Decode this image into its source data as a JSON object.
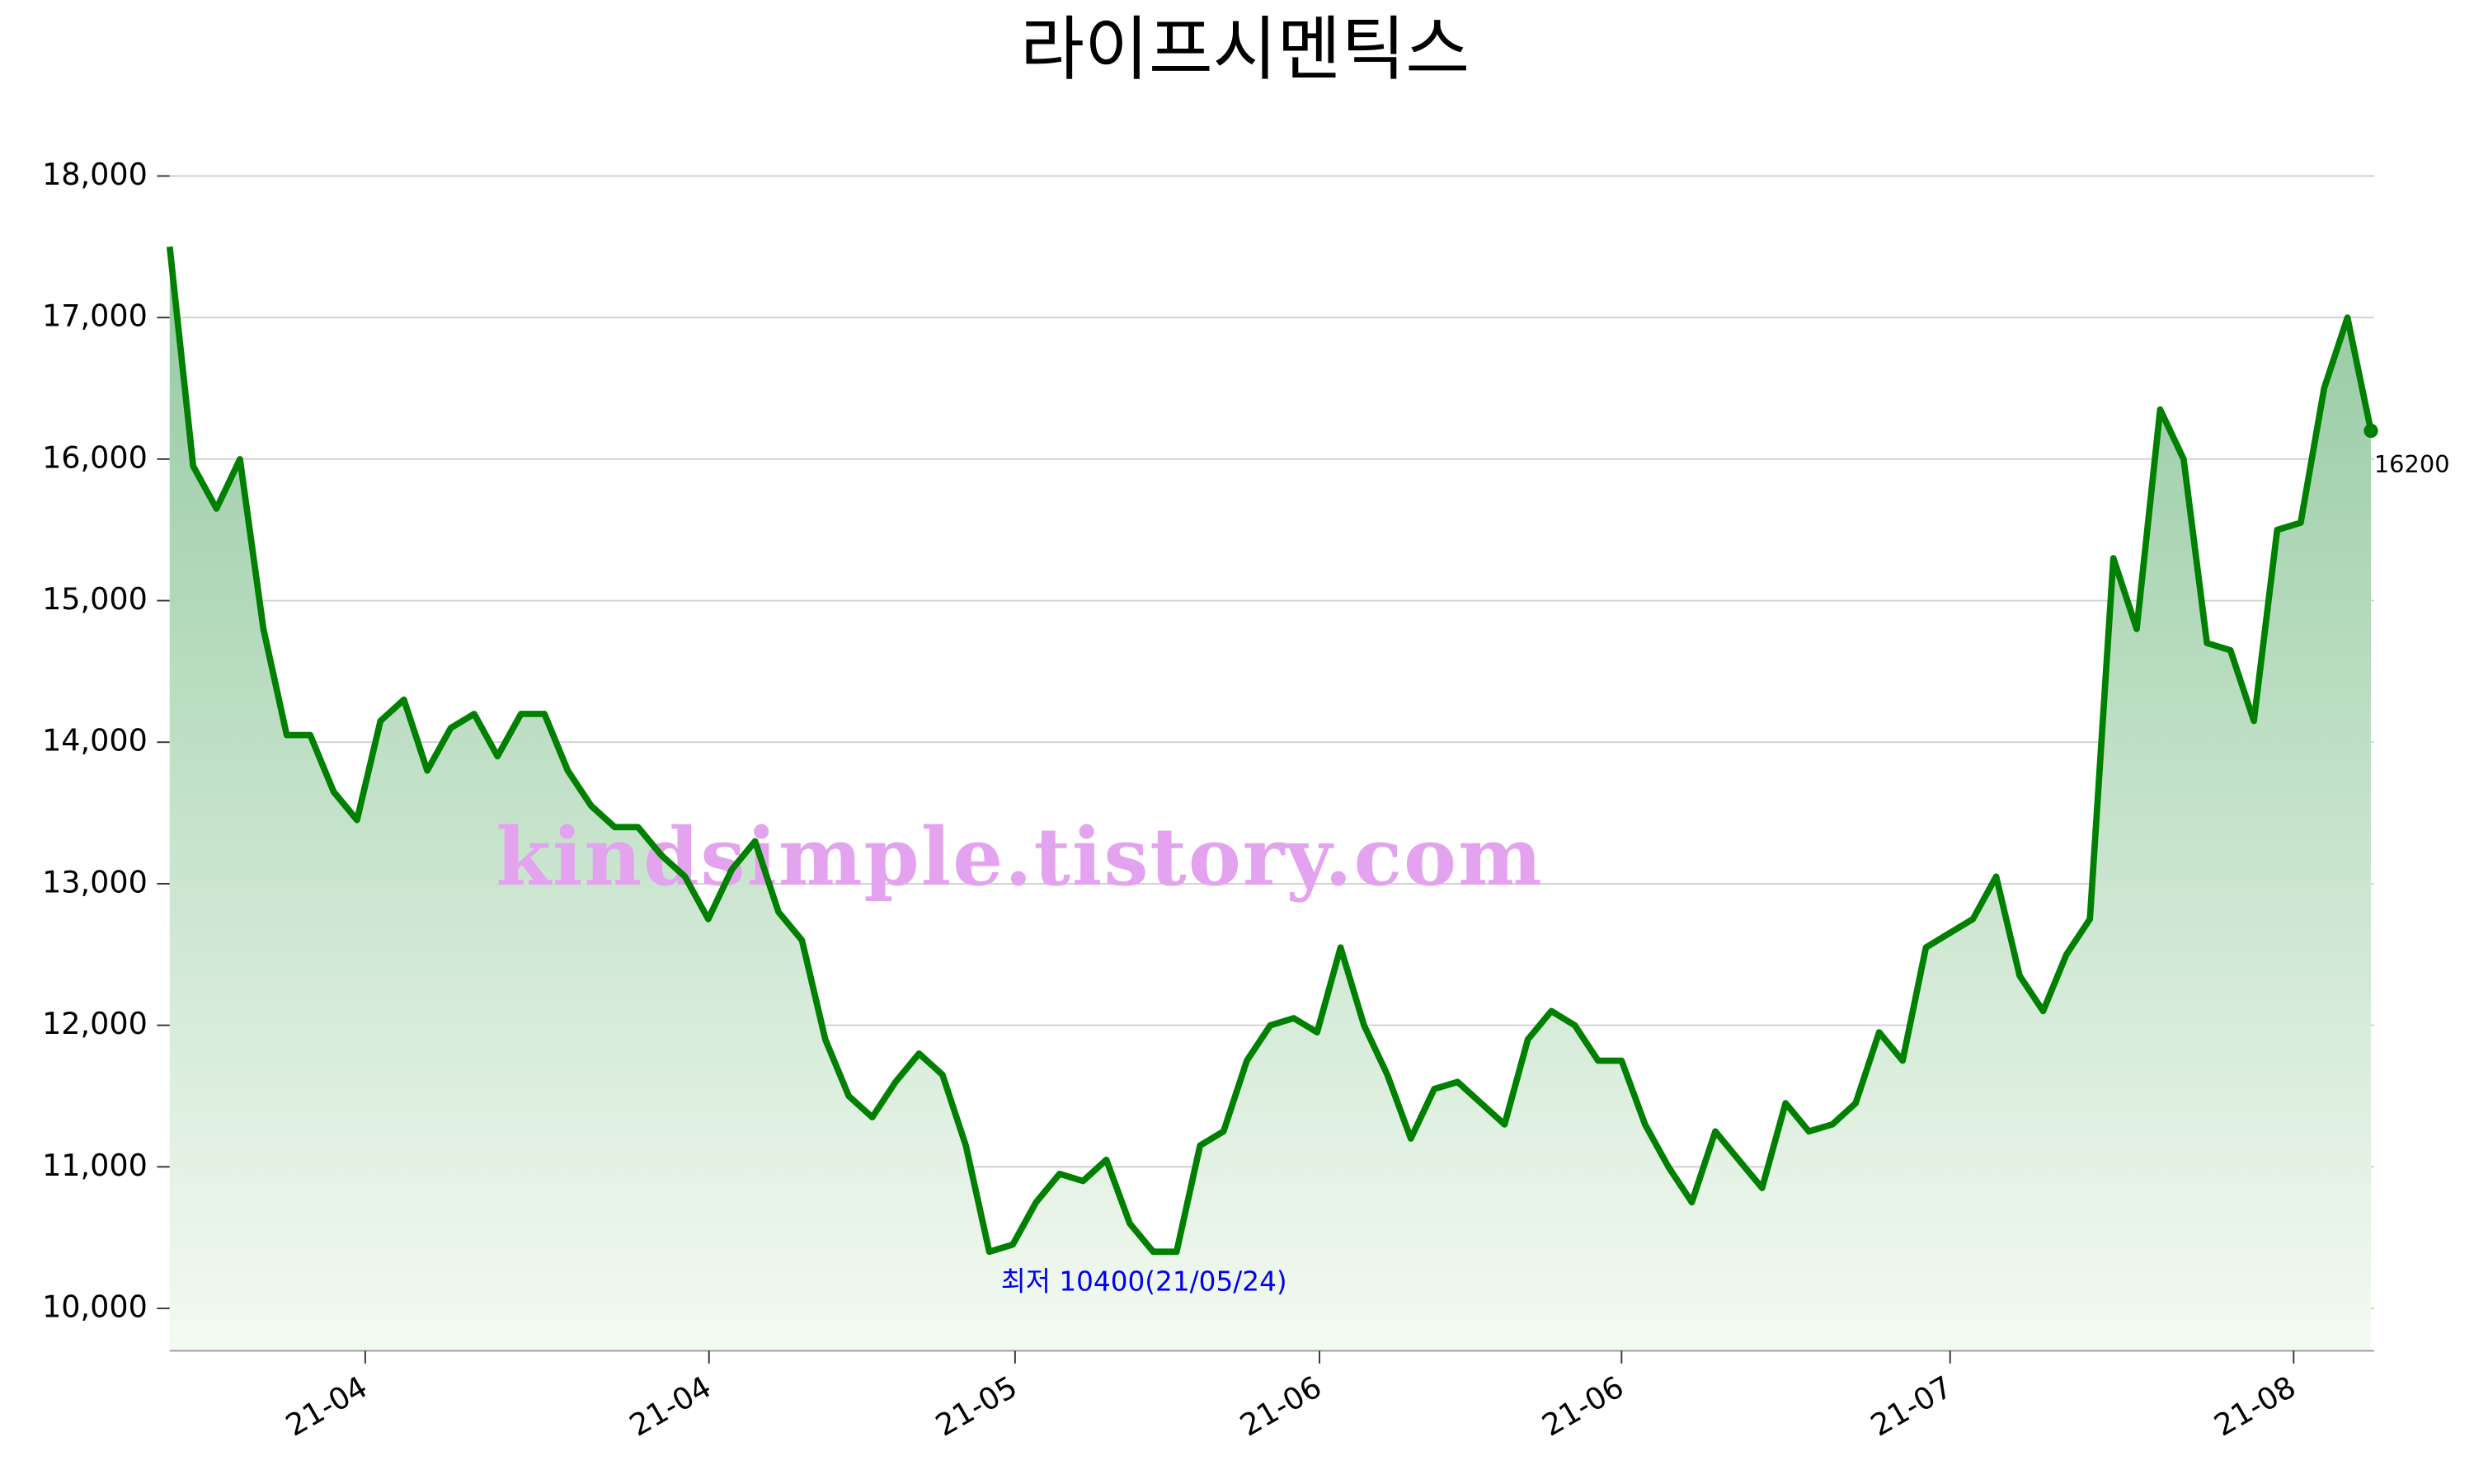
{
  "chart_data": {
    "type": "line",
    "title": "라이프시멘틱스",
    "watermark": "kindsimple.tistory.com",
    "annotation": "최저 10400(21/05/24)",
    "color": "#008000",
    "fill_top": "#93c9a1",
    "fill_bottom": "#f4faf2",
    "grid": true,
    "values": [
      17500,
      15950,
      15650,
      16000,
      14800,
      14050,
      14050,
      13650,
      13450,
      14150,
      14300,
      13800,
      14100,
      14200,
      13900,
      14200,
      14200,
      13800,
      13550,
      13400,
      13400,
      13200,
      13050,
      12750,
      13100,
      13300,
      12800,
      12600,
      11900,
      11500,
      11350,
      11600,
      11800,
      11650,
      11150,
      10400,
      10450,
      10750,
      10950,
      10900,
      11050,
      10600,
      10400,
      10400,
      11150,
      11250,
      11750,
      12000,
      12050,
      11950,
      12550,
      12000,
      11650,
      11200,
      11550,
      11600,
      11450,
      11300,
      11900,
      12100,
      12000,
      11750,
      11750,
      11300,
      11000,
      10750,
      11250,
      11050,
      10850,
      11450,
      11250,
      11300,
      11450,
      11950,
      11750,
      12550,
      12650,
      12750,
      13050,
      12350,
      12100,
      12500,
      12750,
      15300,
      14800,
      16350,
      16000,
      14700,
      14650,
      14150,
      15500,
      15550,
      16500,
      17000,
      16200
    ],
    "xlim": [
      0,
      94
    ],
    "xticks": [
      {
        "value": 8.35,
        "label": "21-04"
      },
      {
        "value": 23.03,
        "label": "21-04"
      },
      {
        "value": 36.1,
        "label": "21-05"
      },
      {
        "value": 49.1,
        "label": "21-06"
      },
      {
        "value": 62,
        "label": "21-06"
      },
      {
        "value": 76.03,
        "label": "21-07"
      },
      {
        "value": 90.7,
        "label": "21-08"
      }
    ],
    "ylim": [
      9700,
      18400
    ],
    "yticks": [
      {
        "value": 10000,
        "label": "10,000"
      },
      {
        "value": 11000,
        "label": "11,000"
      },
      {
        "value": 12000,
        "label": "12,000"
      },
      {
        "value": 13000,
        "label": "13,000"
      },
      {
        "value": 14000,
        "label": "14,000"
      },
      {
        "value": 15000,
        "label": "15,000"
      },
      {
        "value": 16000,
        "label": "16,000"
      },
      {
        "value": 17000,
        "label": "17,000"
      },
      {
        "value": 18000,
        "label": "18,000"
      }
    ],
    "min_index": 42,
    "last_index": 94
  }
}
